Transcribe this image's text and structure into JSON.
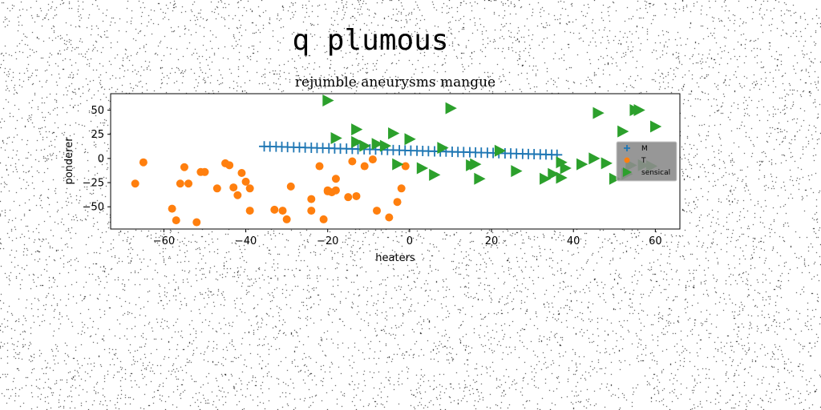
{
  "figure": {
    "suptitle": "q plumous"
  },
  "chart_data": {
    "type": "scatter",
    "title": "rejumble aneurysms mangue",
    "xlabel": "heaters",
    "ylabel": "ponderer",
    "xlim": [
      -73,
      66
    ],
    "ylim": [
      -73,
      67
    ],
    "xticks": [
      -60,
      -40,
      -20,
      0,
      20,
      40,
      60
    ],
    "yticks": [
      -50,
      -25,
      0,
      25,
      50
    ],
    "grid": false,
    "legend_position": "right",
    "series": [
      {
        "name": "M",
        "marker": "plus",
        "color": "#1f77b4",
        "x": [
          -35.5,
          -34.1,
          -32.6,
          -31.2,
          -29.8,
          -28.3,
          -26.9,
          -25.5,
          -24.0,
          -22.6,
          -21.2,
          -19.7,
          -18.3,
          -16.9,
          -15.4,
          -14.0,
          -12.6,
          -11.1,
          -9.7,
          -8.3,
          -6.8,
          -5.4,
          -4.0,
          -2.5,
          -1.1,
          0.3,
          1.8,
          3.2,
          4.6,
          6.1,
          7.5,
          8.9,
          10.4,
          11.8,
          13.2,
          14.7,
          16.1,
          17.5,
          19.0,
          20.4,
          21.8,
          23.3,
          24.7,
          26.1,
          27.6,
          29.0,
          30.4,
          31.9,
          33.3,
          34.7,
          36.0
        ],
        "y": [
          12.5,
          12.3,
          12.2,
          12.0,
          11.8,
          11.6,
          11.5,
          11.3,
          11.1,
          10.9,
          10.8,
          10.6,
          10.4,
          10.2,
          10.1,
          9.9,
          9.7,
          9.5,
          9.4,
          9.2,
          9.0,
          8.8,
          8.7,
          8.5,
          8.3,
          8.1,
          8.0,
          7.8,
          7.6,
          7.4,
          7.3,
          7.1,
          6.9,
          6.7,
          6.6,
          6.4,
          6.2,
          6.0,
          5.9,
          5.7,
          5.5,
          5.3,
          5.2,
          5.0,
          4.8,
          4.6,
          4.5,
          4.3,
          4.1,
          3.9,
          3.8
        ]
      },
      {
        "name": "T",
        "marker": "circle",
        "color": "#ff7f0e",
        "x": [
          -67,
          -65,
          -58,
          -57,
          -56,
          -55,
          -54,
          -52,
          -51,
          -50,
          -47,
          -45,
          -44,
          -43,
          -42,
          -41,
          -40,
          -39,
          -39,
          -33,
          -31,
          -30,
          -29,
          -24,
          -24,
          -22,
          -21,
          -20,
          -19,
          -18,
          -18,
          -15,
          -14,
          -13,
          -11,
          -9,
          -8,
          -5,
          -3,
          -2,
          -1,
          -20
        ],
        "y": [
          -26,
          -4,
          -52,
          -64,
          -26,
          -9,
          -26,
          -66,
          -14,
          -14,
          -31,
          -5,
          -7,
          -30,
          -38,
          -15,
          -24,
          -31,
          -54,
          -53,
          -54,
          -63,
          -29,
          -42,
          -54,
          -8,
          -63,
          -33,
          -35,
          -21,
          -33,
          -40,
          -3,
          -39,
          -8,
          -1,
          -54,
          -61,
          -45,
          -31,
          -8,
          -34
        ]
      },
      {
        "name": "sensical",
        "marker": "triangle-right",
        "color": "#2ca02c",
        "x": [
          -20,
          -18,
          -13,
          -13,
          -11,
          -8,
          -6,
          -4,
          -3,
          0,
          3,
          6,
          8,
          10,
          15,
          16,
          17,
          22,
          26,
          33,
          35,
          37,
          37,
          38,
          42,
          45,
          46,
          48,
          50,
          52,
          53,
          54,
          55,
          56,
          57,
          59,
          60
        ],
        "y": [
          60,
          21,
          30,
          17,
          13,
          15,
          13,
          26,
          -6,
          20,
          -10,
          -17,
          11,
          52,
          -7,
          -6,
          -21,
          8,
          -13,
          -21,
          -16,
          -4,
          -20,
          -10,
          -6,
          0,
          47,
          -5,
          -21,
          28,
          -16,
          -7,
          50,
          50,
          -7,
          -8,
          33
        ]
      }
    ],
    "legend": [
      "M",
      "T",
      "sensical"
    ]
  }
}
